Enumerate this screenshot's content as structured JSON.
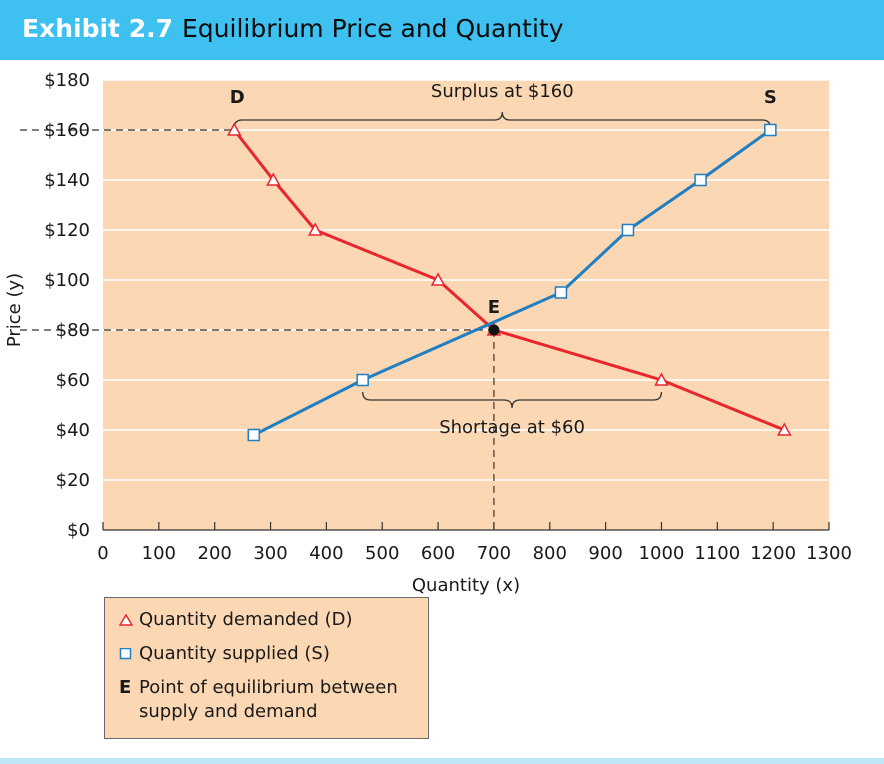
{
  "header": {
    "exhibit": "Exhibit 2.7",
    "title": "Equilibrium Price and Quantity",
    "background_color": "#3ec0f0"
  },
  "chart_data": {
    "type": "line",
    "xlabel": "Quantity (x)",
    "ylabel": "Price (y)",
    "xlim": [
      0,
      1300
    ],
    "ylim": [
      0,
      180
    ],
    "x_ticks": [
      "0",
      "100",
      "200",
      "300",
      "400",
      "500",
      "600",
      "700",
      "800",
      "900",
      "1000",
      "1100",
      "1200",
      "1300"
    ],
    "y_ticks": [
      "$0",
      "$20",
      "$40",
      "$60",
      "$80",
      "$100",
      "$120",
      "$140",
      "$160",
      "$180"
    ],
    "plot_background": "#fbd7b4",
    "grid": true,
    "series": [
      {
        "name": "Quantity demanded (D)",
        "line_label": "D",
        "color": "#e8262c",
        "marker": "triangle",
        "points": [
          [
            235,
            160
          ],
          [
            305,
            140
          ],
          [
            380,
            120
          ],
          [
            600,
            100
          ],
          [
            700,
            80
          ],
          [
            1000,
            60
          ],
          [
            1220,
            40
          ]
        ]
      },
      {
        "name": "Quantity supplied (S)",
        "line_label": "S",
        "color": "#1f7fc2",
        "marker": "square",
        "points": [
          [
            270,
            38
          ],
          [
            465,
            60
          ],
          [
            820,
            95
          ],
          [
            940,
            120
          ],
          [
            1070,
            140
          ],
          [
            1195,
            160
          ]
        ]
      }
    ],
    "equilibrium": {
      "label": "E",
      "x": 700,
      "y": 80
    },
    "annotations": [
      {
        "text": "Surplus at $160",
        "price": 160,
        "x_from": 235,
        "x_to": 1195
      },
      {
        "text": "Shortage at $60",
        "price": 60,
        "x_from": 465,
        "x_to": 1000
      }
    ],
    "legend": {
      "placement": "below",
      "items": [
        {
          "symbol": "triangle",
          "text": "Quantity demanded (D)"
        },
        {
          "symbol": "square",
          "text": "Quantity supplied (S)"
        },
        {
          "key": "E",
          "text": "Point of equilibrium between supply and demand"
        }
      ]
    }
  }
}
